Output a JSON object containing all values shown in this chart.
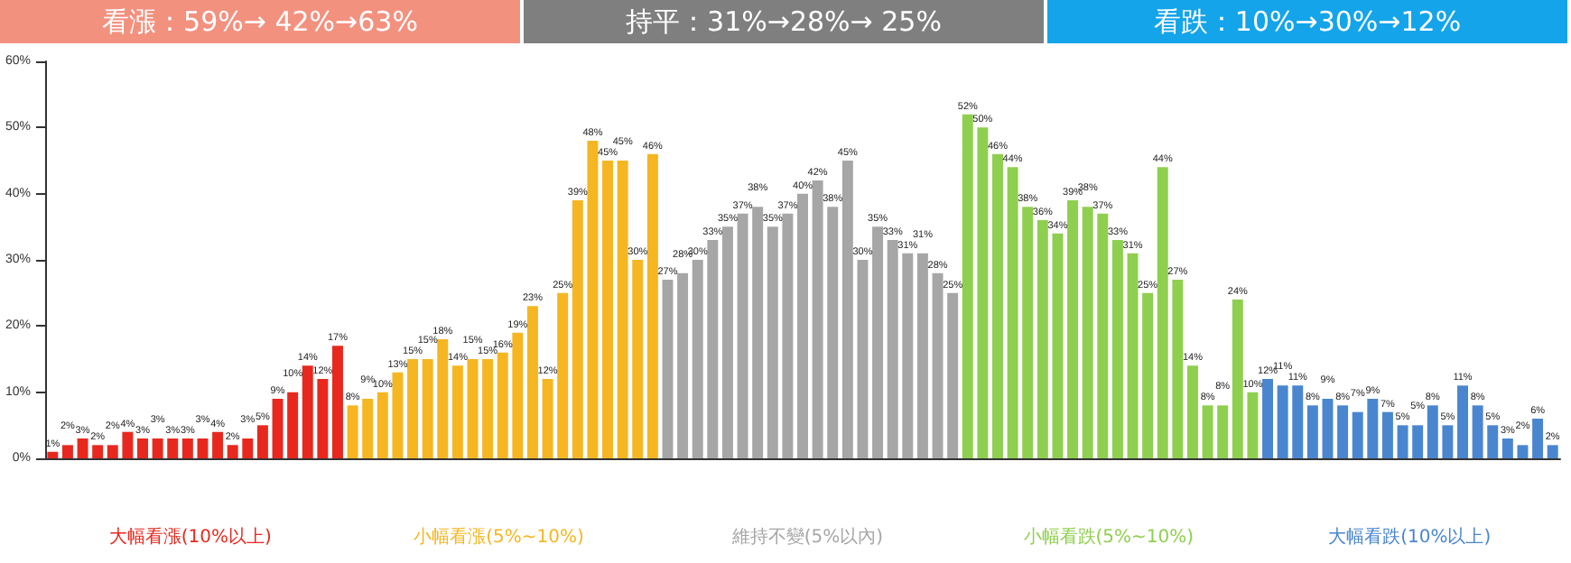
{
  "chart_data": {
    "type": "bar",
    "annotations": [
      "看漲：59%→ 42%→63%",
      "持平：31%→28%→ 25%",
      "看跌：10%→30%→12%"
    ],
    "categories": [
      null,
      null,
      null,
      null,
      null,
      null,
      null,
      null,
      null,
      null,
      null,
      null,
      null,
      null,
      null,
      null,
      null,
      null,
      null,
      null,
      null,
      null,
      null,
      null,
      null,
      null,
      null,
      null,
      null,
      null,
      null,
      null,
      null,
      null,
      null,
      null,
      null,
      null,
      null,
      null,
      null,
      null,
      null,
      null,
      null,
      null,
      null,
      null,
      null,
      null,
      null,
      null,
      null,
      null,
      null,
      null,
      null,
      null,
      null,
      null,
      null,
      null,
      null,
      null,
      null,
      null,
      null,
      null,
      null,
      null,
      null,
      null,
      null,
      null,
      null,
      null,
      null,
      null,
      null,
      null,
      null,
      null,
      null,
      null,
      null,
      null,
      null,
      null,
      null,
      null,
      null,
      null,
      null,
      null,
      null,
      null,
      null,
      null,
      null,
      null,
      null
    ],
    "series": [
      {
        "name": "大幅看漲(10%以上)",
        "color": "#e8281e",
        "values": [
          1,
          2,
          3,
          2,
          2,
          4,
          3,
          3,
          3,
          3,
          3,
          4,
          2,
          3,
          5,
          9,
          10,
          14,
          12,
          17,
          null,
          null,
          null,
          null,
          null,
          null,
          null,
          null,
          null,
          null,
          null,
          null,
          null,
          null,
          null,
          null,
          null,
          null,
          null,
          null,
          null,
          null,
          null,
          null,
          null,
          null,
          null,
          null,
          null,
          null,
          null,
          null,
          null,
          null,
          null,
          null,
          null,
          null,
          null,
          null,
          null,
          null,
          null,
          null,
          null,
          null,
          null,
          null,
          null,
          null,
          null,
          null,
          null,
          null,
          null,
          null,
          null,
          null,
          null,
          null,
          null,
          null,
          null,
          null,
          null,
          null,
          null,
          null,
          null,
          null,
          null,
          null,
          null,
          null,
          null,
          null,
          null,
          null,
          null,
          null,
          null
        ],
        "value_labels": [
          "1%",
          "2%",
          "3%",
          "2%",
          "2%",
          "4%",
          "3%",
          "3%",
          "3%",
          "3%",
          "3%",
          "4%",
          "2%",
          "3%",
          "5%",
          "9%",
          "10%",
          "14%",
          "12%",
          "17%",
          null,
          null,
          null,
          null,
          null,
          null,
          null,
          null,
          null,
          null,
          null,
          null,
          null,
          null,
          null,
          null,
          null,
          null,
          null,
          null,
          null,
          null,
          null,
          null,
          null,
          null,
          null,
          null,
          null,
          null,
          null,
          null,
          null,
          null,
          null,
          null,
          null,
          null,
          null,
          null,
          null,
          null,
          null,
          null,
          null,
          null,
          null,
          null,
          null,
          null,
          null,
          null,
          null,
          null,
          null,
          null,
          null,
          null,
          null,
          null,
          null,
          null,
          null,
          null,
          null,
          null,
          null,
          null,
          null,
          null,
          null,
          null,
          null,
          null,
          null,
          null,
          null,
          null,
          null,
          null,
          null
        ]
      },
      {
        "name": "小幅看漲(5%~10%)",
        "color": "#f5b622",
        "values": [
          null,
          null,
          null,
          null,
          null,
          null,
          null,
          null,
          null,
          null,
          null,
          null,
          null,
          null,
          null,
          null,
          null,
          null,
          null,
          null,
          8,
          9,
          10,
          13,
          15,
          15,
          18,
          14,
          15,
          15,
          16,
          19,
          23,
          12,
          25,
          39,
          48,
          45,
          45,
          30,
          46,
          null,
          null,
          null,
          null,
          null,
          null,
          null,
          null,
          null,
          null,
          null,
          null,
          null,
          null,
          null,
          null,
          null,
          null,
          null,
          null,
          null,
          null,
          null,
          null,
          null,
          null,
          null,
          null,
          null,
          null,
          null,
          null,
          null,
          null,
          null,
          null,
          null,
          null,
          null,
          null,
          null,
          null,
          null,
          null,
          null,
          null,
          null,
          null,
          null,
          null,
          null,
          null,
          null,
          null,
          null,
          null,
          null,
          null,
          null,
          null
        ],
        "value_labels": [
          null,
          null,
          null,
          null,
          null,
          null,
          null,
          null,
          null,
          null,
          null,
          null,
          null,
          null,
          null,
          null,
          null,
          null,
          null,
          null,
          "8%",
          "9%",
          "10%",
          "13%",
          "15%",
          "15%",
          "18%",
          "14%",
          "15%",
          "15%",
          "16%",
          "19%",
          "23%",
          "12%",
          "25%",
          "39%",
          "48%",
          "45%",
          "45%",
          "30%",
          "46%",
          null,
          null,
          null,
          null,
          null,
          null,
          null,
          null,
          null,
          null,
          null,
          null,
          null,
          null,
          null,
          null,
          null,
          null,
          null,
          null,
          null,
          null,
          null,
          null,
          null,
          null,
          null,
          null,
          null,
          null,
          null,
          null,
          null,
          null,
          null,
          null,
          null,
          null,
          null,
          null,
          null,
          null,
          null,
          null,
          null,
          null,
          null,
          null,
          null,
          null,
          null,
          null,
          null,
          null,
          null,
          null,
          null,
          null,
          null,
          null
        ]
      },
      {
        "name": "維持不變(5%以內)",
        "color": "#a6a6a6",
        "values": [
          null,
          null,
          null,
          null,
          null,
          null,
          null,
          null,
          null,
          null,
          null,
          null,
          null,
          null,
          null,
          null,
          null,
          null,
          null,
          null,
          null,
          null,
          null,
          null,
          null,
          null,
          null,
          null,
          null,
          null,
          null,
          null,
          null,
          null,
          null,
          null,
          null,
          null,
          null,
          null,
          null,
          27,
          28,
          30,
          33,
          35,
          37,
          38,
          35,
          37,
          40,
          42,
          38,
          45,
          30,
          35,
          33,
          31,
          31,
          28,
          25,
          null,
          null,
          null,
          null,
          null,
          null,
          null,
          null,
          null,
          null,
          null,
          null,
          null,
          null,
          null,
          null,
          null,
          null,
          null,
          null,
          null,
          null,
          null,
          null,
          null,
          null,
          null,
          null,
          null,
          null,
          null,
          null,
          null,
          null,
          null,
          null,
          null,
          null,
          null,
          null
        ],
        "value_labels": [
          null,
          null,
          null,
          null,
          null,
          null,
          null,
          null,
          null,
          null,
          null,
          null,
          null,
          null,
          null,
          null,
          null,
          null,
          null,
          null,
          null,
          null,
          null,
          null,
          null,
          null,
          null,
          null,
          null,
          null,
          null,
          null,
          null,
          null,
          null,
          null,
          null,
          null,
          null,
          null,
          null,
          "27%",
          "28%",
          "30%",
          "33%",
          "35%",
          "37%",
          "38%",
          "35%",
          "37%",
          "40%",
          "42%",
          "38%",
          "45%",
          "30%",
          "35%",
          "33%",
          "31%",
          "31%",
          "28%",
          "25%",
          null,
          null,
          null,
          null,
          null,
          null,
          null,
          null,
          null,
          null,
          null,
          null,
          null,
          null,
          null,
          null,
          null,
          null,
          null,
          null,
          null,
          null,
          null,
          null,
          null,
          null,
          null,
          null,
          null,
          null,
          null,
          null,
          null,
          null,
          null,
          null,
          null,
          null,
          null,
          null
        ]
      },
      {
        "name": "小幅看跌(5%~10%)",
        "color": "#8fcf4f",
        "values": [
          null,
          null,
          null,
          null,
          null,
          null,
          null,
          null,
          null,
          null,
          null,
          null,
          null,
          null,
          null,
          null,
          null,
          null,
          null,
          null,
          null,
          null,
          null,
          null,
          null,
          null,
          null,
          null,
          null,
          null,
          null,
          null,
          null,
          null,
          null,
          null,
          null,
          null,
          null,
          null,
          null,
          null,
          null,
          null,
          null,
          null,
          null,
          null,
          null,
          null,
          null,
          null,
          null,
          null,
          null,
          null,
          null,
          null,
          null,
          null,
          null,
          52,
          50,
          46,
          44,
          38,
          36,
          34,
          39,
          38,
          37,
          33,
          31,
          25,
          44,
          27,
          14,
          8,
          8,
          24,
          10,
          null,
          null,
          null,
          null,
          null,
          null,
          null,
          null,
          null,
          null,
          null,
          null,
          null,
          null,
          null,
          null,
          null,
          null,
          null,
          null
        ],
        "value_labels": [
          null,
          null,
          null,
          null,
          null,
          null,
          null,
          null,
          null,
          null,
          null,
          null,
          null,
          null,
          null,
          null,
          null,
          null,
          null,
          null,
          null,
          null,
          null,
          null,
          null,
          null,
          null,
          null,
          null,
          null,
          null,
          null,
          null,
          null,
          null,
          null,
          null,
          null,
          null,
          null,
          null,
          null,
          null,
          null,
          null,
          null,
          null,
          null,
          null,
          null,
          null,
          null,
          null,
          null,
          null,
          null,
          null,
          null,
          null,
          null,
          null,
          "52%",
          "50%",
          "46%",
          "44%",
          "38%",
          "36%",
          "34%",
          "39%",
          "38%",
          "37%",
          "33%",
          "31%",
          "25%",
          "44%",
          "27%",
          "14%",
          "8%",
          "8%",
          "24%",
          "10%",
          null,
          null,
          null,
          null,
          null,
          null,
          null,
          null,
          null,
          null,
          null,
          null,
          null,
          null,
          null,
          null,
          null,
          null,
          null,
          null
        ]
      },
      {
        "name": "大幅看跌(10%以上)",
        "color": "#4a86d0",
        "values": [
          null,
          null,
          null,
          null,
          null,
          null,
          null,
          null,
          null,
          null,
          null,
          null,
          null,
          null,
          null,
          null,
          null,
          null,
          null,
          null,
          null,
          null,
          null,
          null,
          null,
          null,
          null,
          null,
          null,
          null,
          null,
          null,
          null,
          null,
          null,
          null,
          null,
          null,
          null,
          null,
          null,
          null,
          null,
          null,
          null,
          null,
          null,
          null,
          null,
          null,
          null,
          null,
          null,
          null,
          null,
          null,
          null,
          null,
          null,
          null,
          null,
          null,
          null,
          null,
          null,
          null,
          null,
          null,
          null,
          null,
          null,
          null,
          null,
          null,
          null,
          null,
          null,
          null,
          null,
          null,
          null,
          12,
          11,
          11,
          8,
          9,
          8,
          7,
          9,
          7,
          5,
          5,
          8,
          5,
          11,
          8,
          5,
          3,
          2,
          6,
          2
        ],
        "value_labels": [
          null,
          null,
          null,
          null,
          null,
          null,
          null,
          null,
          null,
          null,
          null,
          null,
          null,
          null,
          null,
          null,
          null,
          null,
          null,
          null,
          null,
          null,
          null,
          null,
          null,
          null,
          null,
          null,
          null,
          null,
          null,
          null,
          null,
          null,
          null,
          null,
          null,
          null,
          null,
          null,
          null,
          null,
          null,
          null,
          null,
          null,
          null,
          null,
          null,
          null,
          null,
          null,
          null,
          null,
          null,
          null,
          null,
          null,
          null,
          null,
          null,
          null,
          null,
          null,
          null,
          null,
          null,
          null,
          null,
          null,
          null,
          null,
          null,
          null,
          null,
          null,
          null,
          null,
          null,
          null,
          null,
          "12%",
          "11%",
          "11%",
          "8%",
          "9%",
          "8%",
          "7%",
          "9%",
          "7%",
          "5%",
          "5%",
          "8%",
          "5%",
          "11%",
          "8%",
          "5%",
          "3%",
          "2%",
          "6%",
          "2%"
        ]
      }
    ],
    "ylim": [
      0,
      60
    ],
    "yticks": [
      {
        "value": 0,
        "label": "0%"
      },
      {
        "value": 10,
        "label": "10%"
      },
      {
        "value": 20,
        "label": "20%"
      },
      {
        "value": 30,
        "label": "30%"
      },
      {
        "value": 40,
        "label": "40%"
      },
      {
        "value": 50,
        "label": "50%"
      },
      {
        "value": 60,
        "label": "60%"
      }
    ],
    "grid": false,
    "legend": false
  }
}
